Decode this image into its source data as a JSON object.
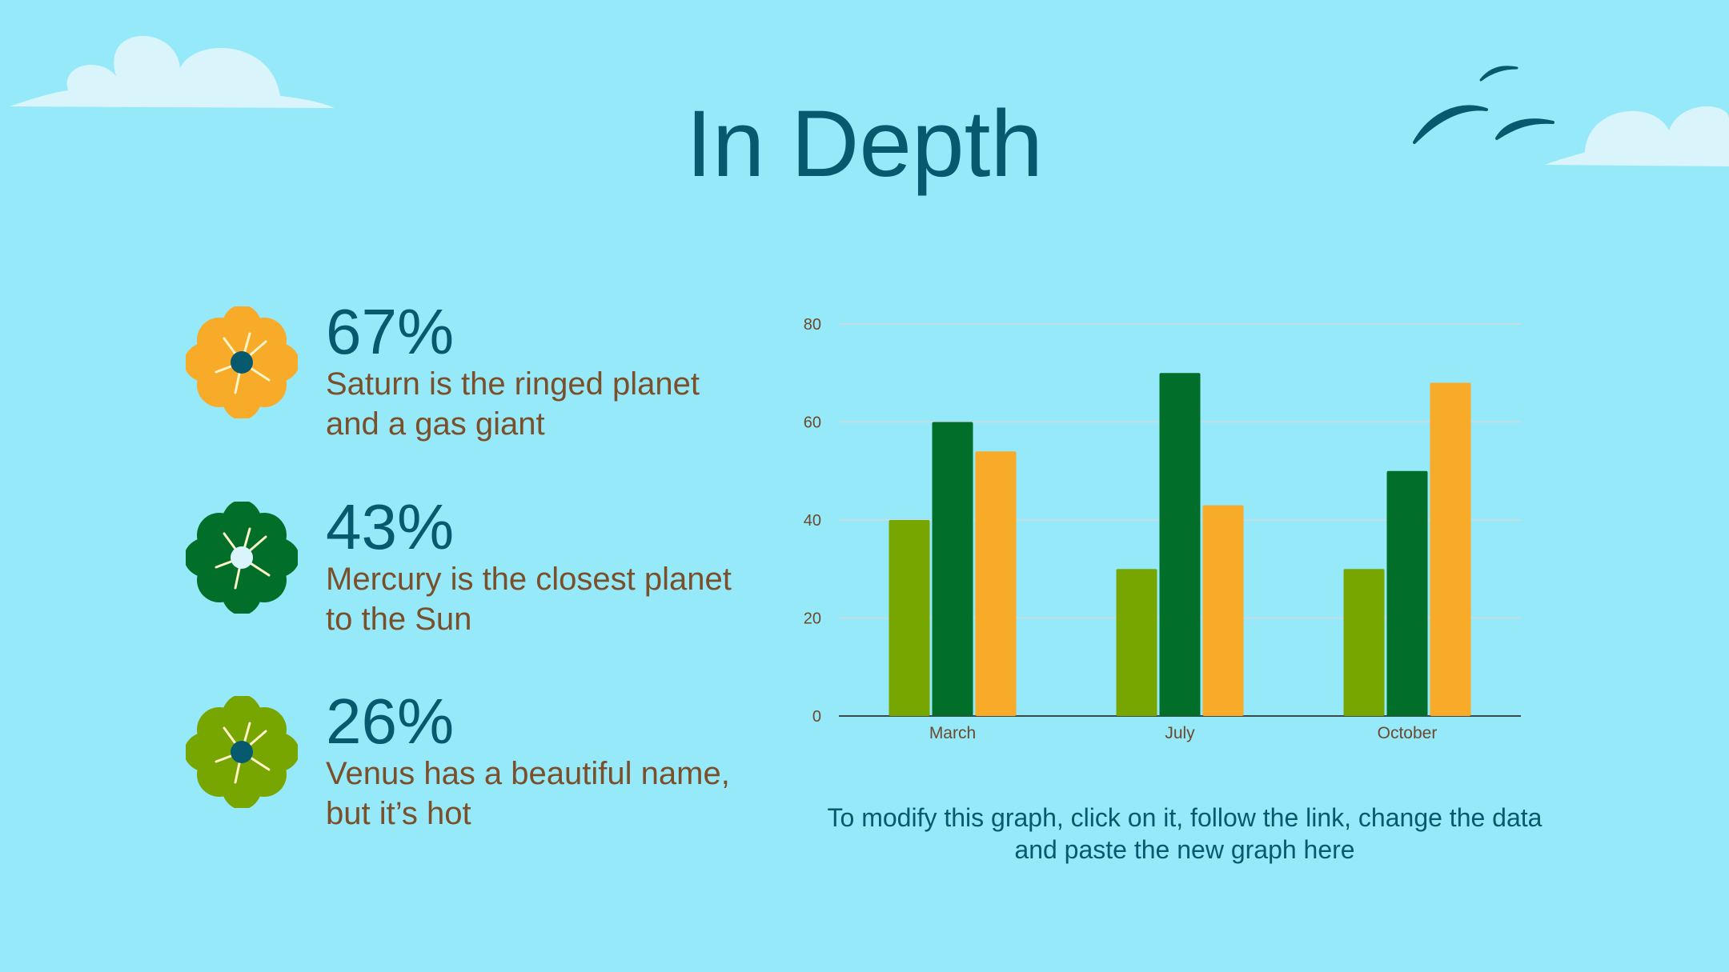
{
  "slide": {
    "title": "In Depth",
    "note": "To modify this graph, click on it, follow the link, change the data and paste the new graph here"
  },
  "stats": [
    {
      "value": "67%",
      "text": "Saturn is the ringed planet and a gas giant",
      "flower_color": "#f7ab29",
      "center_color": "#07596e"
    },
    {
      "value": "43%",
      "text": "Mercury is the closest planet to the Sun",
      "flower_color": "#016f2a",
      "center_color": "#d9f4fb"
    },
    {
      "value": "26%",
      "text": "Venus has a beautiful name, but it’s hot",
      "flower_color": "#78a601",
      "center_color": "#07596e"
    }
  ],
  "colors": {
    "background": "#95e9f9",
    "title": "#07596e",
    "text_brown": "#7a4f2a",
    "cloud": "#d9f4fb",
    "birds": "#07596e"
  },
  "chart_data": {
    "type": "bar",
    "categories": [
      "March",
      "July",
      "October"
    ],
    "series": [
      {
        "values": [
          40,
          30,
          30
        ],
        "color": "#78a601"
      },
      {
        "values": [
          60,
          70,
          50
        ],
        "color": "#016f2a"
      },
      {
        "values": [
          54,
          43,
          68
        ],
        "color": "#f7ab29"
      }
    ],
    "yticks": [
      "0",
      "20",
      "40",
      "60",
      "80"
    ],
    "ylim": [
      0,
      80
    ],
    "grid": true,
    "legend": "none",
    "title": "",
    "xlabel": "",
    "ylabel": ""
  }
}
